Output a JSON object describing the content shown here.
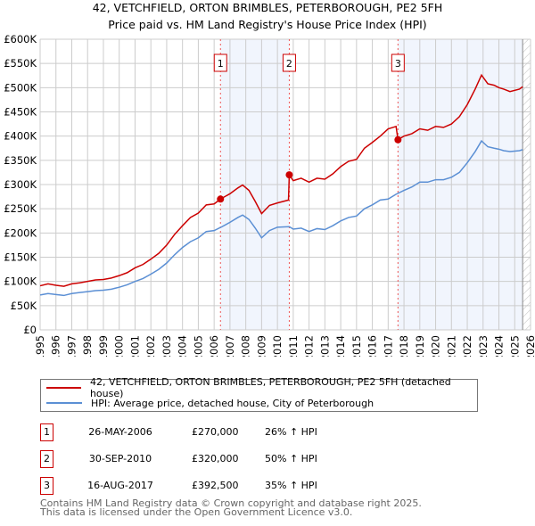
{
  "title": "42, VETCHFIELD, ORTON BRIMBLES, PETERBOROUGH, PE2 5FH",
  "subtitle": "Price paid vs. HM Land Registry's House Price Index (HPI)",
  "chart_data": {
    "type": "line",
    "xlim": [
      1995,
      2026
    ],
    "ylim": [
      0,
      600000
    ],
    "x_ticks": [
      "1995",
      "1996",
      "1997",
      "1998",
      "1999",
      "2000",
      "2001",
      "2002",
      "2003",
      "2004",
      "2005",
      "2006",
      "2007",
      "2008",
      "2009",
      "2010",
      "2011",
      "2012",
      "2013",
      "2014",
      "2015",
      "2016",
      "2017",
      "2018",
      "2019",
      "2020",
      "2021",
      "2022",
      "2023",
      "2024",
      "2025",
      "2026"
    ],
    "y_ticks": [
      {
        "v": 0,
        "l": "£0"
      },
      {
        "v": 50000,
        "l": "£50K"
      },
      {
        "v": 100000,
        "l": "£100K"
      },
      {
        "v": 150000,
        "l": "£150K"
      },
      {
        "v": 200000,
        "l": "£200K"
      },
      {
        "v": 250000,
        "l": "£250K"
      },
      {
        "v": 300000,
        "l": "£300K"
      },
      {
        "v": 350000,
        "l": "£350K"
      },
      {
        "v": 400000,
        "l": "£400K"
      },
      {
        "v": 450000,
        "l": "£450K"
      },
      {
        "v": 500000,
        "l": "£500K"
      },
      {
        "v": 550000,
        "l": "£550K"
      },
      {
        "v": 600000,
        "l": "£600K"
      }
    ],
    "grid": true,
    "series": [
      {
        "name": "42, VETCHFIELD, ORTON BRIMBLES, PETERBOROUGH, PE2 5FH (detached house)",
        "color": "#cc0000",
        "x": [
          1995,
          1995.5,
          1996,
          1996.5,
          1997,
          1997.5,
          1998,
          1998.5,
          1999,
          1999.5,
          2000,
          2000.5,
          2001,
          2001.5,
          2002,
          2002.5,
          2003,
          2003.5,
          2004,
          2004.5,
          2005,
          2005.5,
          2006,
          2006.4,
          2006.5,
          2007,
          2007.5,
          2007.8,
          2008.2,
          2008.6,
          2009,
          2009.5,
          2010,
          2010.7,
          2010.75,
          2011,
          2011.5,
          2012,
          2012.5,
          2013,
          2013.5,
          2014,
          2014.5,
          2015,
          2015.5,
          2016,
          2016.5,
          2017,
          2017.5,
          2017.62,
          2018,
          2018.5,
          2019,
          2019.5,
          2020,
          2020.5,
          2021,
          2021.5,
          2022,
          2022.5,
          2022.9,
          2023.3,
          2023.7,
          2024,
          2024.3,
          2024.7,
          2025.3,
          2025.5
        ],
        "y": [
          91000,
          95000,
          92000,
          90000,
          95000,
          97000,
          100000,
          103000,
          104000,
          107000,
          112000,
          118000,
          128000,
          135000,
          146000,
          158000,
          175000,
          197000,
          215000,
          232000,
          241000,
          258000,
          260000,
          270000,
          272000,
          281000,
          293000,
          299000,
          288000,
          265000,
          240000,
          257000,
          262000,
          268000,
          320000,
          308000,
          313000,
          305000,
          313000,
          311000,
          322000,
          337000,
          348000,
          352000,
          375000,
          387000,
          400000,
          415000,
          420000,
          392500,
          400000,
          405000,
          415000,
          412000,
          420000,
          418000,
          425000,
          440000,
          465000,
          497000,
          526000,
          508000,
          505000,
          500000,
          497000,
          492000,
          497000,
          502000
        ]
      },
      {
        "name": "HPI: Average price, detached house, City of Peterborough",
        "color": "#5b8fd4",
        "x": [
          1995,
          1995.5,
          1996,
          1996.5,
          1997,
          1997.5,
          1998,
          1998.5,
          1999,
          1999.5,
          2000,
          2000.5,
          2001,
          2001.5,
          2002,
          2002.5,
          2003,
          2003.5,
          2004,
          2004.5,
          2005,
          2005.5,
          2006,
          2006.5,
          2007,
          2007.5,
          2007.8,
          2008.2,
          2008.6,
          2009,
          2009.5,
          2010,
          2010.75,
          2011,
          2011.5,
          2012,
          2012.5,
          2013,
          2013.5,
          2014,
          2014.5,
          2015,
          2015.5,
          2016,
          2016.5,
          2017,
          2017.5,
          2018,
          2018.5,
          2019,
          2019.5,
          2020,
          2020.5,
          2021,
          2021.5,
          2022,
          2022.5,
          2022.9,
          2023.3,
          2023.7,
          2024,
          2024.3,
          2024.7,
          2025.3,
          2025.5
        ],
        "y": [
          72000,
          75000,
          73000,
          71000,
          75000,
          77000,
          79000,
          81000,
          82000,
          84000,
          88000,
          93000,
          100000,
          106000,
          115000,
          125000,
          138000,
          155000,
          170000,
          182000,
          190000,
          203000,
          205000,
          213000,
          222000,
          232000,
          237000,
          228000,
          210000,
          190000,
          205000,
          212000,
          213000,
          208000,
          210000,
          203000,
          209000,
          207000,
          215000,
          225000,
          232000,
          235000,
          250000,
          258000,
          268000,
          270000,
          280000,
          288000,
          295000,
          305000,
          305000,
          310000,
          310000,
          315000,
          325000,
          345000,
          368000,
          390000,
          378000,
          375000,
          373000,
          370000,
          368000,
          370000,
          372000
        ]
      }
    ],
    "sales": [
      {
        "label": "1",
        "x": 2006.4,
        "price": 270000,
        "date": "26-MAY-2006",
        "price_text": "£270,000",
        "hpi_text": "26% ↑ HPI"
      },
      {
        "label": "2",
        "x": 2010.75,
        "price": 320000,
        "date": "30-SEP-2010",
        "price_text": "£320,000",
        "hpi_text": "50% ↑ HPI"
      },
      {
        "label": "3",
        "x": 2017.62,
        "price": 392500,
        "date": "16-AUG-2017",
        "price_text": "£392,500",
        "hpi_text": "35% ↑ HPI"
      }
    ],
    "shaded_ranges": [
      [
        2006.4,
        2010.75
      ],
      [
        2017.62,
        2025.5
      ]
    ],
    "hatched_from": 2025.5
  },
  "footer": [
    "Contains HM Land Registry data © Crown copyright and database right 2025.",
    "This data is licensed under the Open Government Licence v3.0."
  ]
}
